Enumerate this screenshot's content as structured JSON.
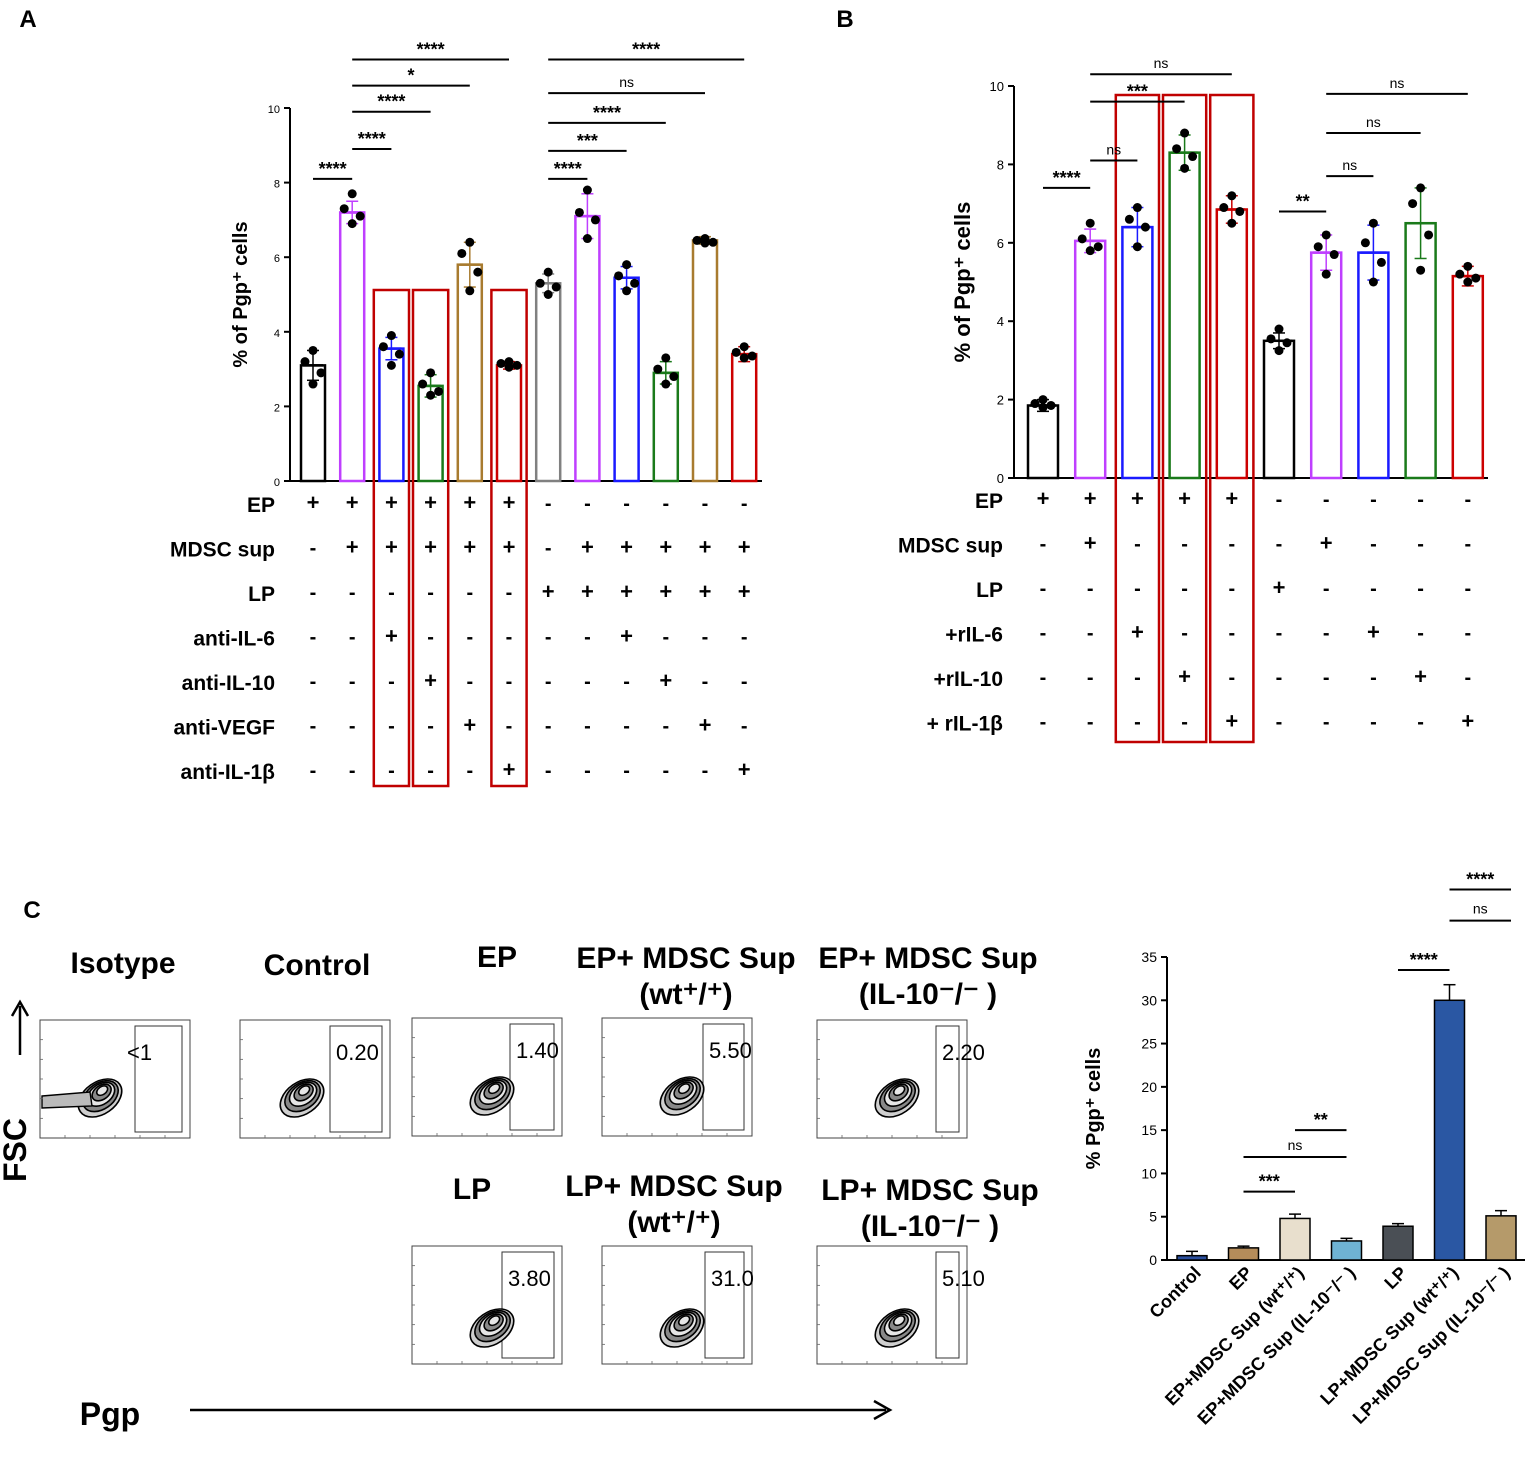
{
  "panel_letters": {
    "a": "A",
    "b": "B",
    "c": "C"
  },
  "chart_data": [
    {
      "id": "A",
      "type": "bar",
      "ylabel": "% of Pgp⁺ cells",
      "ylim": [
        0,
        10
      ],
      "yticks": [
        "0",
        "2",
        "4",
        "6",
        "8",
        "10"
      ],
      "bars": [
        {
          "mean": 3.1,
          "err": 0.4,
          "color": "#000000",
          "points": [
            3.5,
            3.2,
            2.9,
            2.6
          ]
        },
        {
          "mean": 7.2,
          "err": 0.3,
          "color": "#bf3fff",
          "points": [
            7.7,
            7.3,
            7.1,
            6.9
          ]
        },
        {
          "mean": 3.55,
          "err": 0.3,
          "color": "#1a1aff",
          "points": [
            3.9,
            3.6,
            3.4,
            3.1
          ]
        },
        {
          "mean": 2.55,
          "err": 0.3,
          "color": "#1a7a1a",
          "points": [
            2.9,
            2.6,
            2.4,
            2.3
          ]
        },
        {
          "mean": 5.8,
          "err": 0.6,
          "color": "#a87b2f",
          "points": [
            6.4,
            6.1,
            5.6,
            5.1
          ]
        },
        {
          "mean": 3.1,
          "err": 0.1,
          "color": "#cc0000",
          "points": [
            3.2,
            3.15,
            3.1,
            3.05
          ]
        },
        {
          "mean": 5.3,
          "err": 0.25,
          "color": "#808080",
          "points": [
            5.6,
            5.3,
            5.2,
            5.0
          ]
        },
        {
          "mean": 7.1,
          "err": 0.6,
          "color": "#bf3fff",
          "points": [
            7.8,
            7.2,
            7.0,
            6.5
          ]
        },
        {
          "mean": 5.45,
          "err": 0.3,
          "color": "#1a1aff",
          "points": [
            5.8,
            5.5,
            5.3,
            5.1
          ]
        },
        {
          "mean": 2.9,
          "err": 0.3,
          "color": "#1a7a1a",
          "points": [
            3.3,
            3.0,
            2.8,
            2.6
          ]
        },
        {
          "mean": 6.45,
          "err": 0.1,
          "color": "#a87b2f",
          "points": [
            6.5,
            6.45,
            6.4,
            6.38
          ]
        },
        {
          "mean": 3.4,
          "err": 0.2,
          "color": "#cc0000",
          "points": [
            3.6,
            3.45,
            3.35,
            3.3
          ]
        }
      ],
      "sig": [
        {
          "a": 0,
          "b": 1,
          "label": "****",
          "y": 8.1
        },
        {
          "a": 1,
          "b": 2,
          "label": "****",
          "y": 8.9
        },
        {
          "a": 1,
          "b": 3,
          "label": "****",
          "y": 9.9
        },
        {
          "a": 1,
          "b": 4,
          "label": "*",
          "y": 10.6
        },
        {
          "a": 1,
          "b": 5,
          "label": "****",
          "y": 11.3
        },
        {
          "a": 6,
          "b": 7,
          "label": "****",
          "y": 8.1
        },
        {
          "a": 6,
          "b": 8,
          "label": "***",
          "y": 8.85
        },
        {
          "a": 6,
          "b": 9,
          "label": "****",
          "y": 9.6
        },
        {
          "a": 6,
          "b": 10,
          "label": "ns",
          "y": 10.4
        },
        {
          "a": 6,
          "b": 11,
          "label": "****",
          "y": 11.3
        }
      ],
      "conditions": [
        {
          "label": "EP",
          "values": [
            "+",
            "+",
            "+",
            "+",
            "+",
            "+",
            "-",
            "-",
            "-",
            "-",
            "-",
            "-"
          ]
        },
        {
          "label": "MDSC sup",
          "values": [
            "-",
            "+",
            "+",
            "+",
            "+",
            "+",
            "-",
            "+",
            "+",
            "+",
            "+",
            "+"
          ]
        },
        {
          "label": "LP",
          "values": [
            "-",
            "-",
            "-",
            "-",
            "-",
            "-",
            "+",
            "+",
            "+",
            "+",
            "+",
            "+"
          ]
        },
        {
          "label": "anti-IL-6",
          "values": [
            "-",
            "-",
            "+",
            "-",
            "-",
            "-",
            "-",
            "-",
            "+",
            "-",
            "-",
            "-"
          ]
        },
        {
          "label": "anti-IL-10",
          "values": [
            "-",
            "-",
            "-",
            "+",
            "-",
            "-",
            "-",
            "-",
            "-",
            "+",
            "-",
            "-"
          ]
        },
        {
          "label": "anti-VEGF",
          "values": [
            "-",
            "-",
            "-",
            "-",
            "+",
            "-",
            "-",
            "-",
            "-",
            "-",
            "+",
            "-"
          ]
        },
        {
          "label": "anti-IL-1β",
          "values": [
            "-",
            "-",
            "-",
            "-",
            "-",
            "+",
            "-",
            "-",
            "-",
            "-",
            "-",
            "+"
          ]
        }
      ],
      "highlight": [
        2,
        3,
        5
      ]
    },
    {
      "id": "B",
      "type": "bar",
      "ylabel": "% of Pgp⁺ cells",
      "ylim": [
        0,
        10
      ],
      "yticks": [
        "0",
        "2",
        "4",
        "6",
        "8",
        "10"
      ],
      "bars": [
        {
          "mean": 1.85,
          "err": 0.15,
          "color": "#000000",
          "points": [
            2.0,
            1.9,
            1.85,
            1.8
          ]
        },
        {
          "mean": 6.05,
          "err": 0.3,
          "color": "#bf3fff",
          "points": [
            6.5,
            6.1,
            5.9,
            5.8
          ]
        },
        {
          "mean": 6.4,
          "err": 0.5,
          "color": "#1a1aff",
          "points": [
            6.9,
            6.6,
            6.4,
            5.9
          ]
        },
        {
          "mean": 8.3,
          "err": 0.45,
          "color": "#1a7a1a",
          "points": [
            8.8,
            8.4,
            8.2,
            7.9
          ]
        },
        {
          "mean": 6.85,
          "err": 0.35,
          "color": "#cc0000",
          "points": [
            7.2,
            6.9,
            6.8,
            6.5
          ]
        },
        {
          "mean": 3.5,
          "err": 0.2,
          "color": "#000000",
          "points": [
            3.8,
            3.55,
            3.45,
            3.25
          ]
        },
        {
          "mean": 5.75,
          "err": 0.45,
          "color": "#bf3fff",
          "points": [
            6.2,
            5.9,
            5.7,
            5.2
          ]
        },
        {
          "mean": 5.75,
          "err": 0.7,
          "color": "#1a1aff",
          "points": [
            6.5,
            6.0,
            5.5,
            5.0
          ]
        },
        {
          "mean": 6.5,
          "err": 0.9,
          "color": "#1a7a1a",
          "points": [
            7.4,
            7.0,
            6.2,
            5.3
          ]
        },
        {
          "mean": 5.15,
          "err": 0.25,
          "color": "#cc0000",
          "points": [
            5.4,
            5.2,
            5.1,
            5.0
          ]
        }
      ],
      "sig": [
        {
          "a": 0,
          "b": 1,
          "label": "****",
          "y": 7.4
        },
        {
          "a": 1,
          "b": 2,
          "label": "ns",
          "y": 8.1
        },
        {
          "a": 1,
          "b": 3,
          "label": "***",
          "y": 9.6
        },
        {
          "a": 1,
          "b": 4,
          "label": "ns",
          "y": 10.3
        },
        {
          "a": 5,
          "b": 6,
          "label": "**",
          "y": 6.8
        },
        {
          "a": 6,
          "b": 7,
          "label": "ns",
          "y": 7.7
        },
        {
          "a": 6,
          "b": 8,
          "label": "ns",
          "y": 8.8
        },
        {
          "a": 6,
          "b": 9,
          "label": "ns",
          "y": 9.8
        }
      ],
      "conditions": [
        {
          "label": "EP",
          "values": [
            "+",
            "+",
            "+",
            "+",
            "+",
            "-",
            "-",
            "-",
            "-",
            "-"
          ]
        },
        {
          "label": "MDSC sup",
          "values": [
            "-",
            "+",
            "-",
            "-",
            "-",
            "-",
            "+",
            "-",
            "-",
            "-"
          ]
        },
        {
          "label": "LP",
          "values": [
            "-",
            "-",
            "-",
            "-",
            "-",
            "+",
            "-",
            "-",
            "-",
            "-"
          ]
        },
        {
          "label": "+rIL-6",
          "values": [
            "-",
            "-",
            "+",
            "-",
            "-",
            "-",
            "-",
            "+",
            "-",
            "-"
          ]
        },
        {
          "label": "+rIL-10",
          "values": [
            "-",
            "-",
            "-",
            "+",
            "-",
            "-",
            "-",
            "-",
            "+",
            "-"
          ]
        },
        {
          "label": "+ rIL-1β",
          "values": [
            "-",
            "-",
            "-",
            "-",
            "+",
            "-",
            "-",
            "-",
            "-",
            "+"
          ]
        }
      ],
      "highlight": [
        2,
        3,
        4
      ]
    },
    {
      "id": "C",
      "type": "bar",
      "ylabel": "% Pgp⁺ cells",
      "ylim": [
        0,
        35
      ],
      "yticks": [
        "0",
        "5",
        "10",
        "15",
        "20",
        "25",
        "30",
        "35"
      ],
      "categories": [
        "Control",
        "EP",
        "EP+MDSC Sup (wt⁺/⁺)",
        "EP+MDSC Sup (IL-10⁻/⁻ )",
        "LP",
        "LP+MDSC Sup (wt⁺/⁺)",
        "LP+MDSC Sup (IL-10⁻/⁻ )"
      ],
      "values": [
        0.5,
        1.4,
        4.8,
        2.2,
        3.9,
        30.0,
        5.1
      ],
      "errors": [
        0.5,
        0.2,
        0.5,
        0.3,
        0.3,
        1.8,
        0.6
      ],
      "colors": [
        "#2b4f9e",
        "#b58c5a",
        "#e8dfcd",
        "#6fb3d3",
        "#4a4f55",
        "#2a57a3",
        "#b59a6a"
      ],
      "sig": [
        {
          "a": 1,
          "b": 2,
          "label": "***",
          "y": 7.9
        },
        {
          "a": 1,
          "b": 3,
          "label": "ns",
          "y": 11.9
        },
        {
          "a": 2,
          "b": 3,
          "label": "**",
          "y": 15.0
        },
        {
          "a": 4,
          "b": 5,
          "label": "****",
          "y": 33.5
        },
        {
          "a": 5,
          "b": 6,
          "label": "ns",
          "y": 39.2
        },
        {
          "a": 5,
          "b": 6,
          "label": "****",
          "y": 42.8
        }
      ]
    }
  ],
  "flow": {
    "panels": [
      {
        "title": "Isotype",
        "value": "<1"
      },
      {
        "title": "Control",
        "value": "0.20"
      },
      {
        "title": "EP",
        "value": "1.40"
      },
      {
        "title1": "EP+ MDSC Sup",
        "title2": "(wt⁺/⁺)",
        "value": "5.50"
      },
      {
        "title1": "EP+ MDSC Sup",
        "title2": "(IL-10⁻/⁻ )",
        "value": "2.20"
      },
      {
        "title": "LP",
        "value": "3.80"
      },
      {
        "title1": "LP+ MDSC Sup",
        "title2": "(wt⁺/⁺)",
        "value": "31.0"
      },
      {
        "title1": "LP+ MDSC Sup",
        "title2": "(IL-10⁻/⁻ )",
        "value": "5.10"
      }
    ],
    "y_axis": "FSC",
    "x_axis": "Pgp"
  },
  "colors": {
    "highlight_box": "#c00000",
    "axis": "#000000"
  }
}
